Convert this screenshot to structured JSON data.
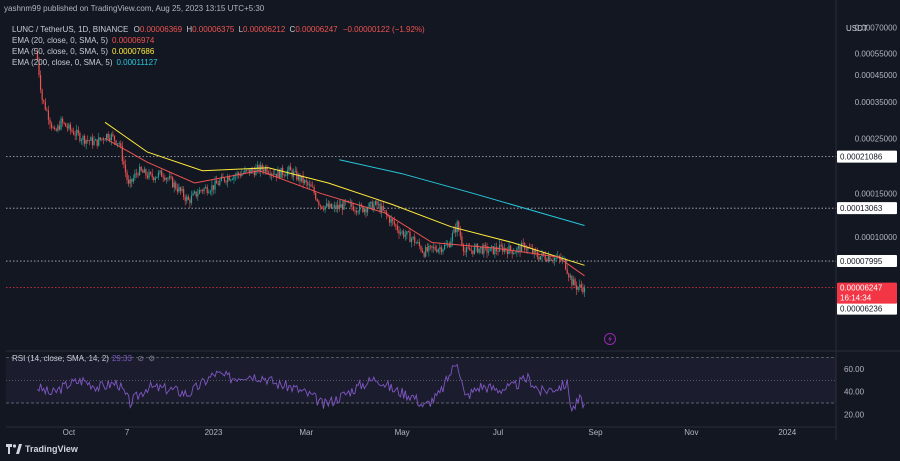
{
  "header": {
    "published_by": "yashnm99 published on TradingView.com, Aug 25, 2023 13:15 UTC+5:30"
  },
  "symbol": {
    "title": "LUNC / TetherUS, 1D, BINANCE",
    "open_label": "O",
    "open": "0.00006369",
    "high_label": "H",
    "high": "0.00006375",
    "low_label": "L",
    "low": "0.00006212",
    "close_label": "C",
    "close": "0.00006247",
    "change": "−0.00000122 (−1.92%)"
  },
  "indicators": [
    {
      "label": "EMA (20, close, 0, SMA, 5)",
      "value": "0.00006974",
      "color": "#ef5350"
    },
    {
      "label": "EMA (50, close, 0, SMA, 5)",
      "value": "0.00007686",
      "color": "#ffeb3b"
    },
    {
      "label": "EMA (200, close, 0, SMA, 5)",
      "value": "0.00011127",
      "color": "#26c6da"
    }
  ],
  "rsi": {
    "label": "RSI (14, close, SMA, 14, 2)",
    "value": "29.33"
  },
  "currency_label": "USDT",
  "branding": {
    "logo_text": "TradingView"
  },
  "colors": {
    "bg": "#131722",
    "up": "#26a69a",
    "down": "#ef5350",
    "rsi": "#7e57c2",
    "price_tag": "#f23645"
  },
  "chart_data": {
    "type": "candlestick",
    "log_scale": true,
    "ylim": [
      3.5e-05,
      0.00075
    ],
    "y_ticks": [
      "0.00070000",
      "0.00055000",
      "0.00045000",
      "0.00035000",
      "0.00025000",
      "0.00015000",
      "0.00010000"
    ],
    "x_ticks": [
      "Oct",
      "7",
      "2023",
      "Mar",
      "May",
      "Jul",
      "Sep",
      "Nov",
      "2024"
    ],
    "price_levels": [
      {
        "label": "0.00021086",
        "value": 0.00021086
      },
      {
        "label": "0.00013063",
        "value": 0.00013063
      },
      {
        "label": "0.00007995",
        "value": 7.995e-05
      },
      {
        "label": "0.00006236",
        "value": 6.236e-05
      }
    ],
    "last_price": {
      "label": "0.00006247",
      "countdown": "16:14:34",
      "value": 6.247e-05
    },
    "close_series": [
      [
        "2022-09-11",
        0.00052
      ],
      [
        "2022-09-14",
        0.00036
      ],
      [
        "2022-09-18",
        0.00031
      ],
      [
        "2022-09-22",
        0.00026
      ],
      [
        "2022-09-26",
        0.00029
      ],
      [
        "2022-10-02",
        0.00027
      ],
      [
        "2022-10-10",
        0.00025
      ],
      [
        "2022-10-18",
        0.00024
      ],
      [
        "2022-10-26",
        0.00026
      ],
      [
        "2022-11-02",
        0.00024
      ],
      [
        "2022-11-08",
        0.00016
      ],
      [
        "2022-11-14",
        0.000185
      ],
      [
        "2022-11-22",
        0.000175
      ],
      [
        "2022-11-30",
        0.00018
      ],
      [
        "2022-12-08",
        0.00016
      ],
      [
        "2022-12-16",
        0.00014
      ],
      [
        "2022-12-24",
        0.000155
      ],
      [
        "2023-01-01",
        0.00016
      ],
      [
        "2023-01-10",
        0.000175
      ],
      [
        "2023-01-18",
        0.00018
      ],
      [
        "2023-01-26",
        0.000185
      ],
      [
        "2023-02-03",
        0.00019
      ],
      [
        "2023-02-10",
        0.00018
      ],
      [
        "2023-02-18",
        0.000185
      ],
      [
        "2023-02-26",
        0.00017
      ],
      [
        "2023-03-05",
        0.000155
      ],
      [
        "2023-03-10",
        0.000135
      ],
      [
        "2023-03-18",
        0.00013
      ],
      [
        "2023-03-26",
        0.000135
      ],
      [
        "2023-04-05",
        0.00013
      ],
      [
        "2023-04-15",
        0.000135
      ],
      [
        "2023-04-22",
        0.00012
      ],
      [
        "2023-04-30",
        0.000105
      ],
      [
        "2023-05-08",
        9.8e-05
      ],
      [
        "2023-05-15",
        8.7e-05
      ],
      [
        "2023-05-22",
        9e-05
      ],
      [
        "2023-05-30",
        9.2e-05
      ],
      [
        "2023-06-05",
        0.000112
      ],
      [
        "2023-06-10",
        8.7e-05
      ],
      [
        "2023-06-18",
        9e-05
      ],
      [
        "2023-06-26",
        8.8e-05
      ],
      [
        "2023-07-04",
        9e-05
      ],
      [
        "2023-07-12",
        8.8e-05
      ],
      [
        "2023-07-18",
        9.2e-05
      ],
      [
        "2023-07-26",
        8.4e-05
      ],
      [
        "2023-08-04",
        8.3e-05
      ],
      [
        "2023-08-12",
        8e-05
      ],
      [
        "2023-08-17",
        6.6e-05
      ],
      [
        "2023-08-20",
        6.3e-05
      ],
      [
        "2023-08-25",
        6.247e-05
      ]
    ],
    "ema20_series": [
      [
        "2022-10-24",
        0.00025
      ],
      [
        "2022-11-20",
        0.0002
      ],
      [
        "2022-12-20",
        0.000165
      ],
      [
        "2023-01-30",
        0.000185
      ],
      [
        "2023-03-10",
        0.00015
      ],
      [
        "2023-04-20",
        0.000125
      ],
      [
        "2023-05-20",
        9.5e-05
      ],
      [
        "2023-06-30",
        9e-05
      ],
      [
        "2023-08-08",
        8.3e-05
      ],
      [
        "2023-08-25",
        6.974e-05
      ]
    ],
    "ema50_series": [
      [
        "2022-10-24",
        0.00029
      ],
      [
        "2022-11-20",
        0.00022
      ],
      [
        "2022-12-25",
        0.000185
      ],
      [
        "2023-02-05",
        0.00019
      ],
      [
        "2023-03-15",
        0.000165
      ],
      [
        "2023-04-25",
        0.000135
      ],
      [
        "2023-06-01",
        0.00011
      ],
      [
        "2023-07-10",
        9.5e-05
      ],
      [
        "2023-08-25",
        7.686e-05
      ]
    ],
    "ema200_series": [
      [
        "2023-03-22",
        0.000205
      ],
      [
        "2023-05-01",
        0.00018
      ],
      [
        "2023-06-15",
        0.00015
      ],
      [
        "2023-08-25",
        0.00011127
      ]
    ],
    "rsi_panel": {
      "levels": [
        70,
        50,
        30
      ],
      "y_ticks": [
        "60.00",
        "40.00",
        "20.00"
      ],
      "series": [
        [
          "2022-09-11",
          44
        ],
        [
          "2022-09-20",
          38
        ],
        [
          "2022-10-01",
          47
        ],
        [
          "2022-10-10",
          50
        ],
        [
          "2022-10-20",
          44
        ],
        [
          "2022-11-01",
          48
        ],
        [
          "2022-11-09",
          30
        ],
        [
          "2022-11-20",
          44
        ],
        [
          "2022-12-05",
          42
        ],
        [
          "2022-12-16",
          38
        ],
        [
          "2023-01-02",
          56
        ],
        [
          "2023-01-12",
          52
        ],
        [
          "2023-01-22",
          55
        ],
        [
          "2023-02-02",
          53
        ],
        [
          "2023-02-10",
          47
        ],
        [
          "2023-02-20",
          44
        ],
        [
          "2023-03-05",
          36
        ],
        [
          "2023-03-12",
          28
        ],
        [
          "2023-03-22",
          35
        ],
        [
          "2023-04-05",
          46
        ],
        [
          "2023-04-15",
          52
        ],
        [
          "2023-04-25",
          42
        ],
        [
          "2023-05-08",
          36
        ],
        [
          "2023-05-15",
          27
        ],
        [
          "2023-05-25",
          38
        ],
        [
          "2023-06-05",
          68
        ],
        [
          "2023-06-10",
          35
        ],
        [
          "2023-06-20",
          45
        ],
        [
          "2023-07-01",
          42
        ],
        [
          "2023-07-10",
          44
        ],
        [
          "2023-07-20",
          52
        ],
        [
          "2023-07-28",
          40
        ],
        [
          "2023-08-08",
          44
        ],
        [
          "2023-08-14",
          47
        ],
        [
          "2023-08-17",
          24
        ],
        [
          "2023-08-22",
          33
        ],
        [
          "2023-08-25",
          29.33
        ]
      ]
    }
  }
}
